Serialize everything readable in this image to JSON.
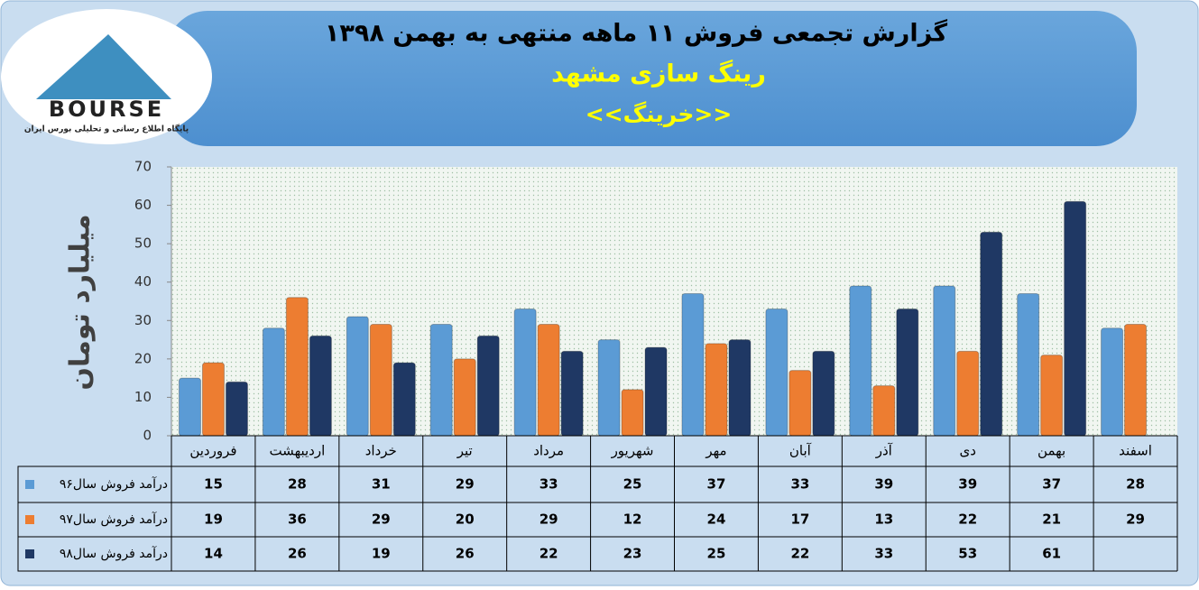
{
  "header": {
    "title": "گزارش تجمعی فروش ۱۱ ماهه منتهی به بهمن ۱۳۹۸",
    "subtitle": "رینگ سازی مشهد",
    "company": "<<خرینگ>>"
  },
  "logo": {
    "name": "BOURSE",
    "tagline": "پایگاه اطلاع رسانی و تحلیلی بورس ایران"
  },
  "chart_data": {
    "type": "bar",
    "ylabel": "میلیارد تومان",
    "categories": [
      "فروردین",
      "اردیبهشت",
      "خرداد",
      "تیر",
      "مرداد",
      "شهریور",
      "مهر",
      "آبان",
      "آذر",
      "دی",
      "بهمن",
      "اسفند"
    ],
    "series": [
      {
        "name": "درآمد فروش سال۹۶",
        "color": "#5b9bd5",
        "values": [
          15,
          28,
          31,
          29,
          33,
          25,
          37,
          33,
          39,
          39,
          37,
          28
        ]
      },
      {
        "name": "درآمد فروش سال۹۷",
        "color": "#ed7d31",
        "values": [
          19,
          36,
          29,
          20,
          29,
          12,
          24,
          17,
          13,
          22,
          21,
          29
        ]
      },
      {
        "name": "درآمد فروش سال۹۸",
        "color": "#1f3864",
        "values": [
          14,
          26,
          19,
          26,
          22,
          23,
          25,
          22,
          33,
          53,
          61,
          null
        ]
      }
    ],
    "ylim": [
      0,
      70
    ],
    "yticks": [
      0,
      10,
      20,
      30,
      40,
      50,
      60,
      70
    ],
    "data_table": true
  }
}
